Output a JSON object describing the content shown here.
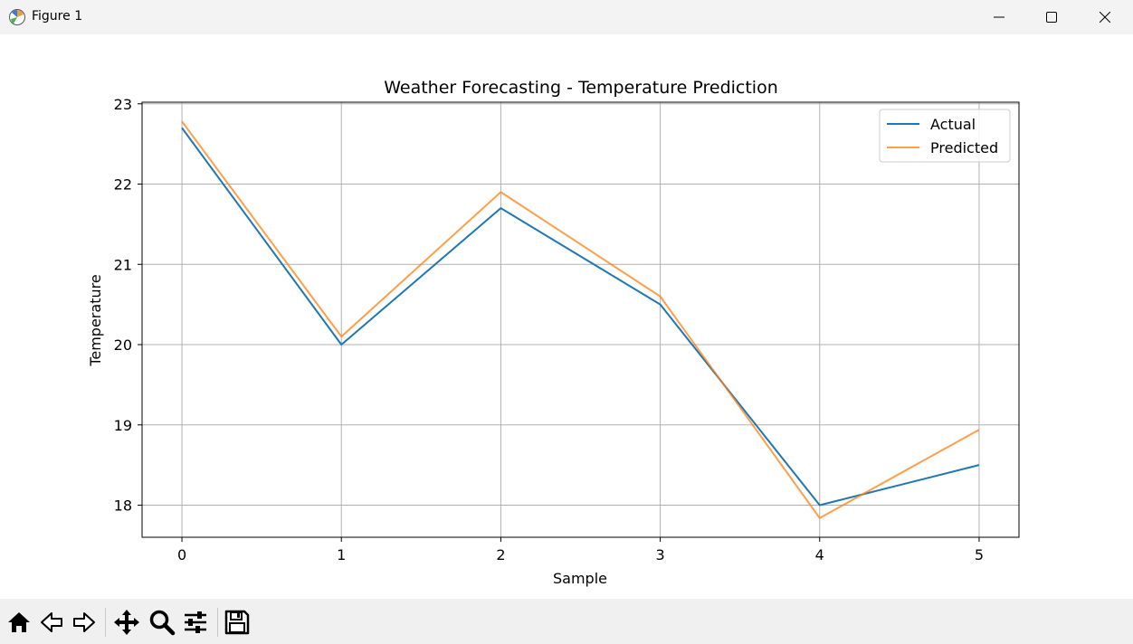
{
  "window": {
    "title": "Figure 1",
    "controls": [
      "minimize",
      "maximize",
      "close"
    ]
  },
  "toolbar": {
    "buttons": [
      {
        "name": "home",
        "icon": "home-icon"
      },
      {
        "name": "back",
        "icon": "back-arrow-icon"
      },
      {
        "name": "forward",
        "icon": "forward-arrow-icon"
      },
      {
        "name": "pan",
        "icon": "move-icon"
      },
      {
        "name": "zoom",
        "icon": "magnifier-icon"
      },
      {
        "name": "configure-subplots",
        "icon": "sliders-icon"
      },
      {
        "name": "save",
        "icon": "floppy-disk-icon"
      }
    ]
  },
  "chart_data": {
    "type": "line",
    "title": "Weather Forecasting - Temperature Prediction",
    "xlabel": "Sample",
    "ylabel": "Temperature",
    "x": [
      0,
      1,
      2,
      3,
      4,
      5
    ],
    "xticks": [
      "0",
      "1",
      "2",
      "3",
      "4",
      "5"
    ],
    "yticks": [
      "18",
      "19",
      "20",
      "21",
      "22",
      "23"
    ],
    "xlim": [
      -0.25,
      5.25
    ],
    "ylim": [
      17.6,
      23.02
    ],
    "grid": true,
    "legend_position": "top-right",
    "series": [
      {
        "name": "Actual",
        "color": "#1f77b4",
        "values": [
          22.7,
          20.0,
          21.7,
          20.5,
          18.0,
          18.5
        ]
      },
      {
        "name": "Predicted",
        "color": "#ff7f0e",
        "values": [
          22.78,
          20.1,
          21.9,
          20.6,
          17.84,
          18.94
        ]
      }
    ]
  }
}
